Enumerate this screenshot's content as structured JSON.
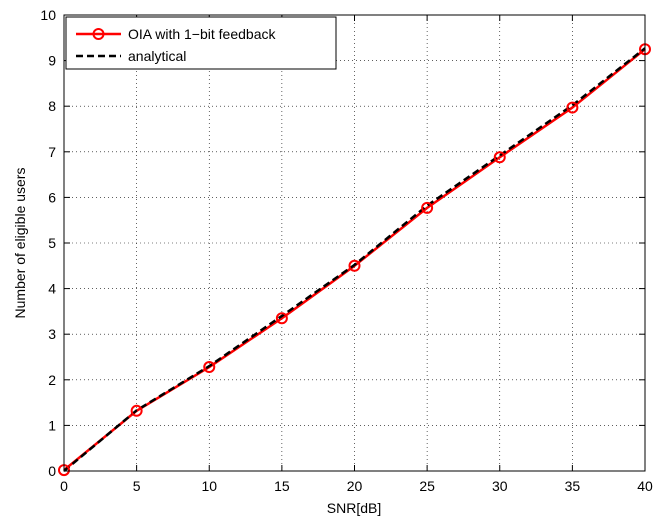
{
  "chart_data": {
    "type": "line",
    "xlabel": "SNR[dB]",
    "ylabel": "Number of eligible users",
    "xlim": [
      0,
      40
    ],
    "ylim": [
      0,
      10
    ],
    "xticks": [
      "0",
      "5",
      "10",
      "15",
      "20",
      "25",
      "30",
      "35",
      "40"
    ],
    "yticks": [
      "0",
      "1",
      "2",
      "3",
      "4",
      "5",
      "6",
      "7",
      "8",
      "9",
      "10"
    ],
    "grid": true,
    "legend_position": "top-left",
    "series": [
      {
        "name": "OIA with 1−bit feedback",
        "color": "#ff0000",
        "style": "solid-circle-markers",
        "x": [
          0,
          5,
          10,
          15,
          20,
          25,
          30,
          35,
          40
        ],
        "y": [
          0.02,
          1.32,
          2.28,
          3.35,
          4.5,
          5.77,
          6.88,
          7.97,
          9.25
        ]
      },
      {
        "name": "analytical",
        "color": "#000000",
        "style": "dashed",
        "x": [
          0,
          5,
          10,
          15,
          20,
          25,
          30,
          35,
          40
        ],
        "y": [
          0.0,
          1.33,
          2.3,
          3.4,
          4.52,
          5.82,
          6.92,
          8.02,
          9.27
        ]
      }
    ]
  }
}
